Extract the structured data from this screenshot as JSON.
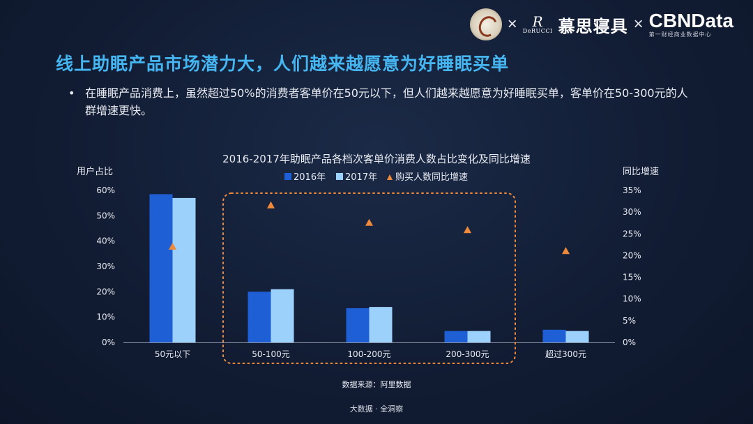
{
  "header": {
    "logo_x": "×",
    "derucci_mark": "R",
    "derucci_brand": "DeRUCCI",
    "brand_cn": "慕思寝具",
    "cbn_title": "CBNData",
    "cbn_sub": "第一财经商业数据中心"
  },
  "title": "线上助眠产品市场潜力大，人们越来越愿意为好睡眠买单",
  "bullet": {
    "dot": "•",
    "text": "在睡眠产品消费上，虽然超过50%的消费者客单价在50元以下，但人们越来越愿意为好睡眠买单，客单价在50-300元的人群增速更快。"
  },
  "chart_data": {
    "type": "bar",
    "title": "2016-2017年助眠产品各档次客单价消费人数占比变化及同比增速",
    "categories": [
      "50元以下",
      "50-100元",
      "100-200元",
      "200-300元",
      "超过300元"
    ],
    "series": [
      {
        "name": "2016年",
        "values": [
          58.5,
          20,
          13.5,
          4.5,
          5
        ],
        "color": "#1f5fd6"
      },
      {
        "name": "2017年",
        "values": [
          57,
          21,
          14,
          4.5,
          4.5
        ],
        "color": "#9cd1fb"
      }
    ],
    "line_series": {
      "name": "购买人数同比增速",
      "values": [
        22,
        31.5,
        27.5,
        25.8,
        21
      ],
      "color": "#f08a3a"
    },
    "ylabel_left": "用户占比",
    "ylabel_right": "同比增速",
    "ylim_left": [
      0,
      60
    ],
    "ylim_right": [
      0,
      35
    ],
    "yticks_left": [
      "0%",
      "10%",
      "20%",
      "30%",
      "40%",
      "50%",
      "60%"
    ],
    "yticks_right": [
      "0%",
      "5%",
      "10%",
      "15%",
      "20%",
      "25%",
      "30%",
      "35%"
    ],
    "legend_position": "top-center",
    "highlight_categories": [
      "50-100元",
      "100-200元",
      "200-300元"
    ],
    "source": "数据来源：阿里数据"
  },
  "footer": "大数据 · 全洞察"
}
